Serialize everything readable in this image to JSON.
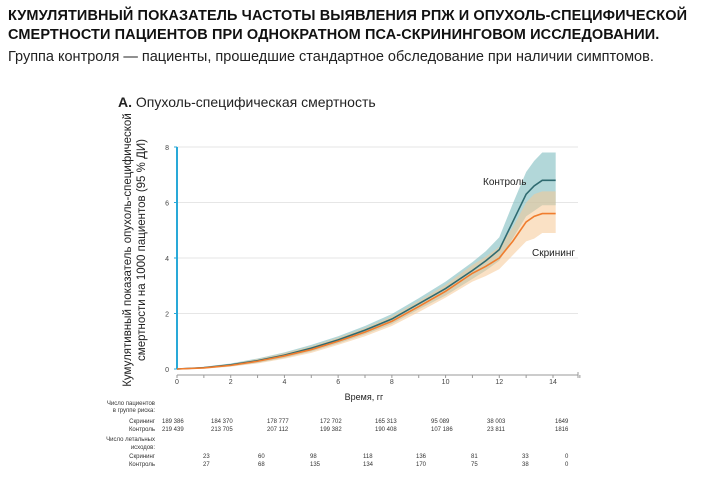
{
  "title": "КУМУЛЯТИВНЫЙ ПОКАЗАТЕЛЬ ЧАСТОТЫ ВЫЯВЛЕНИЯ РПЖ И ОПУХОЛЬ-СПЕЦИФИЧЕСКОЙ СМЕРТНОСТИ ПАЦИЕНТОВ ПРИ ОДНОКРАТНОМ ПСА-СКРИНИНГОВОМ ИССЛЕДОВАНИИ.",
  "subtitle": "Группа контроля — пациенты, прошедшие стандартное обследование при наличии симптомов.",
  "panel_letter": "A.",
  "panel_title": "Опухоль-специфическая смертность",
  "chart_data": {
    "type": "line",
    "xlabel": "Время, гг",
    "ylabel": "Кумулятивный показатель опухоль-специфической смертности на 1000 пациентов (95 % ДИ)",
    "xlim": [
      0,
      14
    ],
    "ylim": [
      0,
      8
    ],
    "xticks": [
      0,
      2,
      4,
      6,
      8,
      10,
      12,
      14
    ],
    "yticks": [
      0,
      2,
      4,
      6,
      8
    ],
    "grid": "horizontal",
    "series": [
      {
        "name": "Контроль",
        "color": "#2f6a70",
        "ci_color": "#7fbcc0",
        "x": [
          0,
          1,
          2,
          3,
          4,
          5,
          6,
          7,
          8,
          9,
          10,
          11,
          11.5,
          12,
          12.5,
          13,
          13.3,
          13.6,
          14.1
        ],
        "y": [
          0,
          0.05,
          0.15,
          0.3,
          0.5,
          0.75,
          1.05,
          1.4,
          1.8,
          2.35,
          2.9,
          3.55,
          3.9,
          4.3,
          5.3,
          6.3,
          6.6,
          6.8,
          6.8
        ],
        "lower": [
          0,
          0.02,
          0.1,
          0.22,
          0.4,
          0.63,
          0.92,
          1.25,
          1.62,
          2.15,
          2.65,
          3.25,
          3.55,
          3.9,
          4.7,
          5.5,
          5.7,
          5.9,
          5.9
        ],
        "upper": [
          0,
          0.08,
          0.2,
          0.38,
          0.6,
          0.87,
          1.18,
          1.55,
          1.98,
          2.55,
          3.15,
          3.85,
          4.25,
          4.75,
          5.95,
          7.1,
          7.5,
          7.8,
          7.8
        ]
      },
      {
        "name": "Скрининг",
        "color": "#f07d2e",
        "ci_color": "#f6c896",
        "x": [
          0,
          1,
          2,
          3,
          4,
          5,
          6,
          7,
          8,
          9,
          10,
          11,
          11.5,
          12,
          12.5,
          13,
          13.3,
          13.6,
          14.1
        ],
        "y": [
          0,
          0.04,
          0.13,
          0.28,
          0.47,
          0.7,
          1.0,
          1.33,
          1.72,
          2.25,
          2.8,
          3.45,
          3.7,
          4.0,
          4.6,
          5.3,
          5.5,
          5.6,
          5.6
        ],
        "lower": [
          0,
          0.01,
          0.08,
          0.2,
          0.37,
          0.58,
          0.87,
          1.18,
          1.55,
          2.05,
          2.57,
          3.15,
          3.35,
          3.6,
          4.1,
          4.6,
          4.7,
          4.9,
          4.9
        ],
        "upper": [
          0,
          0.07,
          0.18,
          0.36,
          0.57,
          0.82,
          1.13,
          1.48,
          1.9,
          2.45,
          3.03,
          3.75,
          4.05,
          4.4,
          5.1,
          6.0,
          6.3,
          6.4,
          6.4
        ]
      }
    ],
    "risk_table": {
      "header_at_risk": "Число пациентов в группе риска:",
      "header_deaths": "Число летальных исходов:",
      "rows_at_risk": [
        {
          "label": "Скрининг",
          "values": [
            "189 386",
            "184 370",
            "178 777",
            "172 702",
            "165 313",
            "95 089",
            "38 003",
            "1649"
          ]
        },
        {
          "label": "Контроль",
          "values": [
            "219 439",
            "213 705",
            "207 112",
            "199 382",
            "190 408",
            "107 186",
            "23 811",
            "1816"
          ]
        }
      ],
      "rows_deaths": [
        {
          "label": "Скрининг",
          "values": [
            "23",
            "60",
            "98",
            "118",
            "136",
            "81",
            "33",
            "0"
          ]
        },
        {
          "label": "Контроль",
          "values": [
            "27",
            "68",
            "135",
            "134",
            "170",
            "75",
            "38",
            "0"
          ]
        }
      ]
    }
  }
}
